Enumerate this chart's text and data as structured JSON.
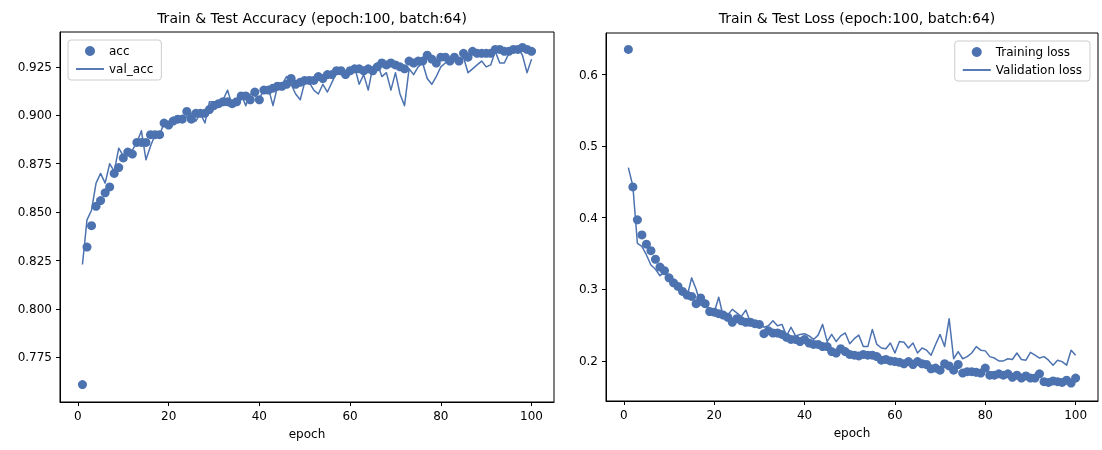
{
  "chart_data": [
    {
      "type": "line",
      "title": "Train & Test Accuracy (epoch:100, batch:64)",
      "xlabel": "epoch",
      "legend": "top left",
      "grid": false,
      "x": [
        1,
        2,
        3,
        4,
        5,
        6,
        7,
        8,
        9,
        10,
        11,
        12,
        13,
        14,
        15,
        16,
        17,
        18,
        19,
        20,
        21,
        22,
        23,
        24,
        25,
        26,
        27,
        28,
        29,
        30,
        31,
        32,
        33,
        34,
        35,
        36,
        37,
        38,
        39,
        40,
        41,
        42,
        43,
        44,
        45,
        46,
        47,
        48,
        49,
        50,
        51,
        52,
        53,
        54,
        55,
        56,
        57,
        58,
        59,
        60,
        61,
        62,
        63,
        64,
        65,
        66,
        67,
        68,
        69,
        70,
        71,
        72,
        73,
        74,
        75,
        76,
        77,
        78,
        79,
        80,
        81,
        82,
        83,
        84,
        85,
        86,
        87,
        88,
        89,
        90,
        91,
        92,
        93,
        94,
        95,
        96,
        97,
        98,
        99,
        100
      ],
      "xlim": [
        -3.95,
        104.95
      ],
      "xticks": [
        0,
        20,
        40,
        60,
        80,
        100
      ],
      "ylim": [
        0.752,
        0.943
      ],
      "yticks": [
        0.775,
        {
          "value": 0.8,
          "label": "0.800"
        },
        0.825,
        {
          "value": 0.85,
          "label": "0.850"
        },
        0.875,
        {
          "value": 0.9,
          "label": "0.900"
        },
        0.925
      ],
      "series": [
        {
          "name": "acc",
          "type": "scatter",
          "marker": "circle",
          "color": "#4c72b0",
          "values": [
            0.761,
            0.832,
            0.843,
            0.853,
            0.856,
            0.86,
            0.863,
            0.87,
            0.873,
            0.878,
            0.881,
            0.88,
            0.886,
            0.886,
            0.886,
            0.89,
            0.89,
            0.89,
            0.896,
            0.895,
            0.897,
            0.898,
            0.898,
            0.902,
            0.898,
            0.901,
            0.901,
            0.901,
            0.903,
            0.905,
            0.906,
            0.907,
            0.907,
            0.906,
            0.907,
            0.91,
            0.91,
            0.908,
            0.912,
            0.908,
            0.913,
            0.913,
            0.914,
            0.915,
            0.915,
            0.916,
            0.919,
            0.916,
            0.917,
            0.918,
            0.918,
            0.918,
            0.92,
            0.919,
            0.921,
            0.921,
            0.923,
            0.923,
            0.921,
            0.923,
            0.924,
            0.924,
            0.923,
            0.924,
            0.923,
            0.925,
            0.927,
            0.926,
            0.927,
            0.926,
            0.925,
            0.924,
            0.928,
            0.927,
            0.928,
            0.928,
            0.931,
            0.929,
            0.927,
            0.93,
            0.93,
            0.928,
            0.93,
            0.928,
            0.932,
            0.93,
            0.933,
            0.932,
            0.932,
            0.932,
            0.932,
            0.934,
            0.934,
            0.933,
            0.933,
            0.934,
            0.934,
            0.935,
            0.934,
            0.933
          ]
        },
        {
          "name": "val_acc",
          "type": "line",
          "color": "#4c72b0",
          "values": [
            0.823,
            0.846,
            0.851,
            0.865,
            0.87,
            0.865,
            0.875,
            0.871,
            0.883,
            0.879,
            0.882,
            0.882,
            0.886,
            0.892,
            0.877,
            0.884,
            0.89,
            0.89,
            0.896,
            0.895,
            0.899,
            0.897,
            0.9,
            0.899,
            0.901,
            0.897,
            0.901,
            0.896,
            0.907,
            0.907,
            0.906,
            0.908,
            0.913,
            0.905,
            0.908,
            0.911,
            0.905,
            0.911,
            0.91,
            0.908,
            0.914,
            0.914,
            0.905,
            0.915,
            0.916,
            0.92,
            0.916,
            0.911,
            0.908,
            0.917,
            0.917,
            0.913,
            0.911,
            0.916,
            0.912,
            0.917,
            0.922,
            0.923,
            0.923,
            0.922,
            0.925,
            0.916,
            0.921,
            0.913,
            0.925,
            0.927,
            0.92,
            0.922,
            0.913,
            0.922,
            0.911,
            0.905,
            0.924,
            0.921,
            0.925,
            0.927,
            0.919,
            0.916,
            0.92,
            0.925,
            0.927,
            0.929,
            0.929,
            0.928,
            0.93,
            0.922,
            0.924,
            0.926,
            0.928,
            0.925,
            0.926,
            0.933,
            0.927,
            0.927,
            0.932,
            0.934,
            0.935,
            0.931,
            0.922,
            0.929
          ]
        }
      ]
    },
    {
      "type": "line",
      "title": "Train & Test Loss (epoch:100, batch:64)",
      "xlabel": "epoch",
      "legend": "top right",
      "grid": false,
      "x": [
        1,
        2,
        3,
        4,
        5,
        6,
        7,
        8,
        9,
        10,
        11,
        12,
        13,
        14,
        15,
        16,
        17,
        18,
        19,
        20,
        21,
        22,
        23,
        24,
        25,
        26,
        27,
        28,
        29,
        30,
        31,
        32,
        33,
        34,
        35,
        36,
        37,
        38,
        39,
        40,
        41,
        42,
        43,
        44,
        45,
        46,
        47,
        48,
        49,
        50,
        51,
        52,
        53,
        54,
        55,
        56,
        57,
        58,
        59,
        60,
        61,
        62,
        63,
        64,
        65,
        66,
        67,
        68,
        69,
        70,
        71,
        72,
        73,
        74,
        75,
        76,
        77,
        78,
        79,
        80,
        81,
        82,
        83,
        84,
        85,
        86,
        87,
        88,
        89,
        90,
        91,
        92,
        93,
        94,
        95,
        96,
        97,
        98,
        99,
        100
      ],
      "xlim": [
        -3.95,
        104.95
      ],
      "xticks": [
        0,
        20,
        40,
        60,
        80,
        100
      ],
      "ylim": [
        0.144,
        0.658
      ],
      "yticks": [
        0.2,
        0.3,
        0.4,
        0.5,
        0.6
      ],
      "series": [
        {
          "name": "Training loss",
          "type": "scatter",
          "marker": "circle",
          "color": "#4c72b0",
          "values": [
            0.635,
            0.443,
            0.397,
            0.376,
            0.363,
            0.354,
            0.342,
            0.331,
            0.326,
            0.316,
            0.309,
            0.304,
            0.297,
            0.292,
            0.29,
            0.28,
            0.288,
            0.28,
            0.269,
            0.268,
            0.266,
            0.264,
            0.261,
            0.254,
            0.259,
            0.256,
            0.254,
            0.254,
            0.252,
            0.251,
            0.238,
            0.242,
            0.239,
            0.239,
            0.237,
            0.233,
            0.23,
            0.23,
            0.227,
            0.23,
            0.225,
            0.223,
            0.223,
            0.22,
            0.22,
            0.213,
            0.211,
            0.217,
            0.213,
            0.209,
            0.208,
            0.207,
            0.209,
            0.208,
            0.208,
            0.206,
            0.201,
            0.202,
            0.2,
            0.199,
            0.198,
            0.196,
            0.199,
            0.195,
            0.199,
            0.196,
            0.195,
            0.189,
            0.19,
            0.187,
            0.196,
            0.193,
            0.187,
            0.195,
            0.183,
            0.185,
            0.185,
            0.184,
            0.183,
            0.19,
            0.18,
            0.18,
            0.182,
            0.18,
            0.182,
            0.177,
            0.18,
            0.176,
            0.179,
            0.176,
            0.176,
            0.182,
            0.171,
            0.17,
            0.172,
            0.171,
            0.17,
            0.173,
            0.169,
            0.176
          ]
        },
        {
          "name": "Validation loss",
          "type": "line",
          "color": "#4c72b0",
          "values": [
            0.47,
            0.444,
            0.364,
            0.36,
            0.348,
            0.334,
            0.328,
            0.319,
            0.324,
            0.315,
            0.312,
            0.308,
            0.295,
            0.29,
            0.316,
            0.3,
            0.278,
            0.285,
            0.268,
            0.268,
            0.289,
            0.262,
            0.264,
            0.272,
            0.267,
            0.262,
            0.271,
            0.254,
            0.254,
            0.252,
            0.247,
            0.249,
            0.256,
            0.249,
            0.251,
            0.235,
            0.247,
            0.235,
            0.237,
            0.238,
            0.235,
            0.23,
            0.236,
            0.251,
            0.227,
            0.237,
            0.227,
            0.235,
            0.239,
            0.224,
            0.231,
            0.236,
            0.22,
            0.22,
            0.244,
            0.223,
            0.218,
            0.217,
            0.225,
            0.211,
            0.227,
            0.226,
            0.218,
            0.225,
            0.211,
            0.218,
            0.215,
            0.208,
            0.223,
            0.237,
            0.22,
            0.259,
            0.203,
            0.213,
            0.203,
            0.206,
            0.211,
            0.22,
            0.215,
            0.214,
            0.206,
            0.204,
            0.2,
            0.2,
            0.203,
            0.202,
            0.211,
            0.202,
            0.201,
            0.212,
            0.208,
            0.204,
            0.206,
            0.201,
            0.194,
            0.201,
            0.199,
            0.194,
            0.215,
            0.208
          ]
        }
      ]
    }
  ]
}
